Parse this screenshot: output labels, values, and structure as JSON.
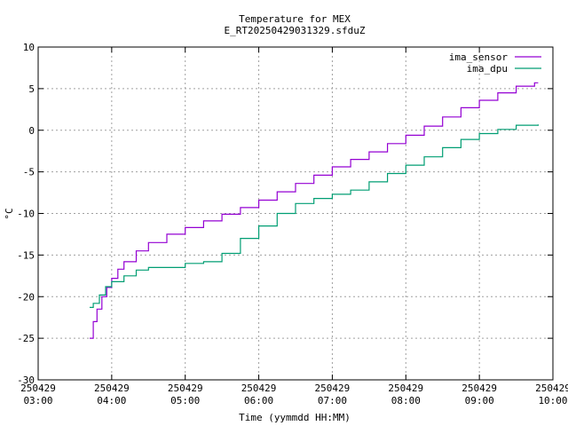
{
  "chart_data": {
    "type": "line",
    "title": "Temperature for MEX",
    "subtitle": "E_RT20250429031329.sfduZ",
    "xlabel": "Time (yymmdd HH:MM)",
    "ylabel": "°C",
    "xlim": [
      "2025-04-29 03:00",
      "2025-04-29 10:00"
    ],
    "ylim": [
      -30,
      10
    ],
    "grid": true,
    "legend_position": "top-right",
    "x_ticks": [
      {
        "date": "250429",
        "time": "03:00"
      },
      {
        "date": "250429",
        "time": "04:00"
      },
      {
        "date": "250429",
        "time": "05:00"
      },
      {
        "date": "250429",
        "time": "06:00"
      },
      {
        "date": "250429",
        "time": "07:00"
      },
      {
        "date": "250429",
        "time": "08:00"
      },
      {
        "date": "250429",
        "time": "09:00"
      },
      {
        "date": "250429",
        "time": "10:00"
      }
    ],
    "y_ticks": [
      "10",
      "5",
      "0",
      "-5",
      "-10",
      "-15",
      "-20",
      "-25",
      "-30"
    ],
    "series": [
      {
        "name": "ima_sensor",
        "color": "#9400d3",
        "step": true,
        "points": [
          [
            "03:42",
            -25.0
          ],
          [
            "03:45",
            -23.0
          ],
          [
            "03:48",
            -21.5
          ],
          [
            "03:52",
            -20.0
          ],
          [
            "03:56",
            -18.9
          ],
          [
            "04:00",
            -17.8
          ],
          [
            "04:05",
            -16.7
          ],
          [
            "04:10",
            -15.8
          ],
          [
            "04:20",
            -14.5
          ],
          [
            "04:30",
            -13.5
          ],
          [
            "04:45",
            -12.5
          ],
          [
            "05:00",
            -11.7
          ],
          [
            "05:15",
            -10.9
          ],
          [
            "05:30",
            -10.1
          ],
          [
            "05:45",
            -9.3
          ],
          [
            "06:00",
            -8.4
          ],
          [
            "06:15",
            -7.4
          ],
          [
            "06:30",
            -6.4
          ],
          [
            "06:45",
            -5.4
          ],
          [
            "07:00",
            -4.4
          ],
          [
            "07:15",
            -3.5
          ],
          [
            "07:30",
            -2.6
          ],
          [
            "07:45",
            -1.6
          ],
          [
            "08:00",
            -0.6
          ],
          [
            "08:15",
            0.5
          ],
          [
            "08:30",
            1.6
          ],
          [
            "08:45",
            2.7
          ],
          [
            "09:00",
            3.6
          ],
          [
            "09:15",
            4.5
          ],
          [
            "09:30",
            5.3
          ],
          [
            "09:45",
            5.7
          ],
          [
            "09:48",
            5.7
          ]
        ]
      },
      {
        "name": "ima_dpu",
        "color": "#009e73",
        "step": true,
        "points": [
          [
            "03:42",
            -21.3
          ],
          [
            "03:45",
            -20.8
          ],
          [
            "03:50",
            -19.8
          ],
          [
            "03:55",
            -18.8
          ],
          [
            "04:00",
            -18.2
          ],
          [
            "04:10",
            -17.5
          ],
          [
            "04:20",
            -16.8
          ],
          [
            "04:30",
            -16.5
          ],
          [
            "04:45",
            -16.5
          ],
          [
            "05:00",
            -16.0
          ],
          [
            "05:15",
            -15.8
          ],
          [
            "05:30",
            -14.8
          ],
          [
            "05:45",
            -13.0
          ],
          [
            "06:00",
            -11.5
          ],
          [
            "06:15",
            -10.0
          ],
          [
            "06:30",
            -8.8
          ],
          [
            "06:45",
            -8.2
          ],
          [
            "07:00",
            -7.7
          ],
          [
            "07:15",
            -7.2
          ],
          [
            "07:30",
            -6.2
          ],
          [
            "07:45",
            -5.2
          ],
          [
            "08:00",
            -4.2
          ],
          [
            "08:15",
            -3.2
          ],
          [
            "08:30",
            -2.1
          ],
          [
            "08:45",
            -1.1
          ],
          [
            "09:00",
            -0.4
          ],
          [
            "09:15",
            0.1
          ],
          [
            "09:30",
            0.6
          ],
          [
            "09:48",
            0.7
          ]
        ]
      }
    ]
  }
}
